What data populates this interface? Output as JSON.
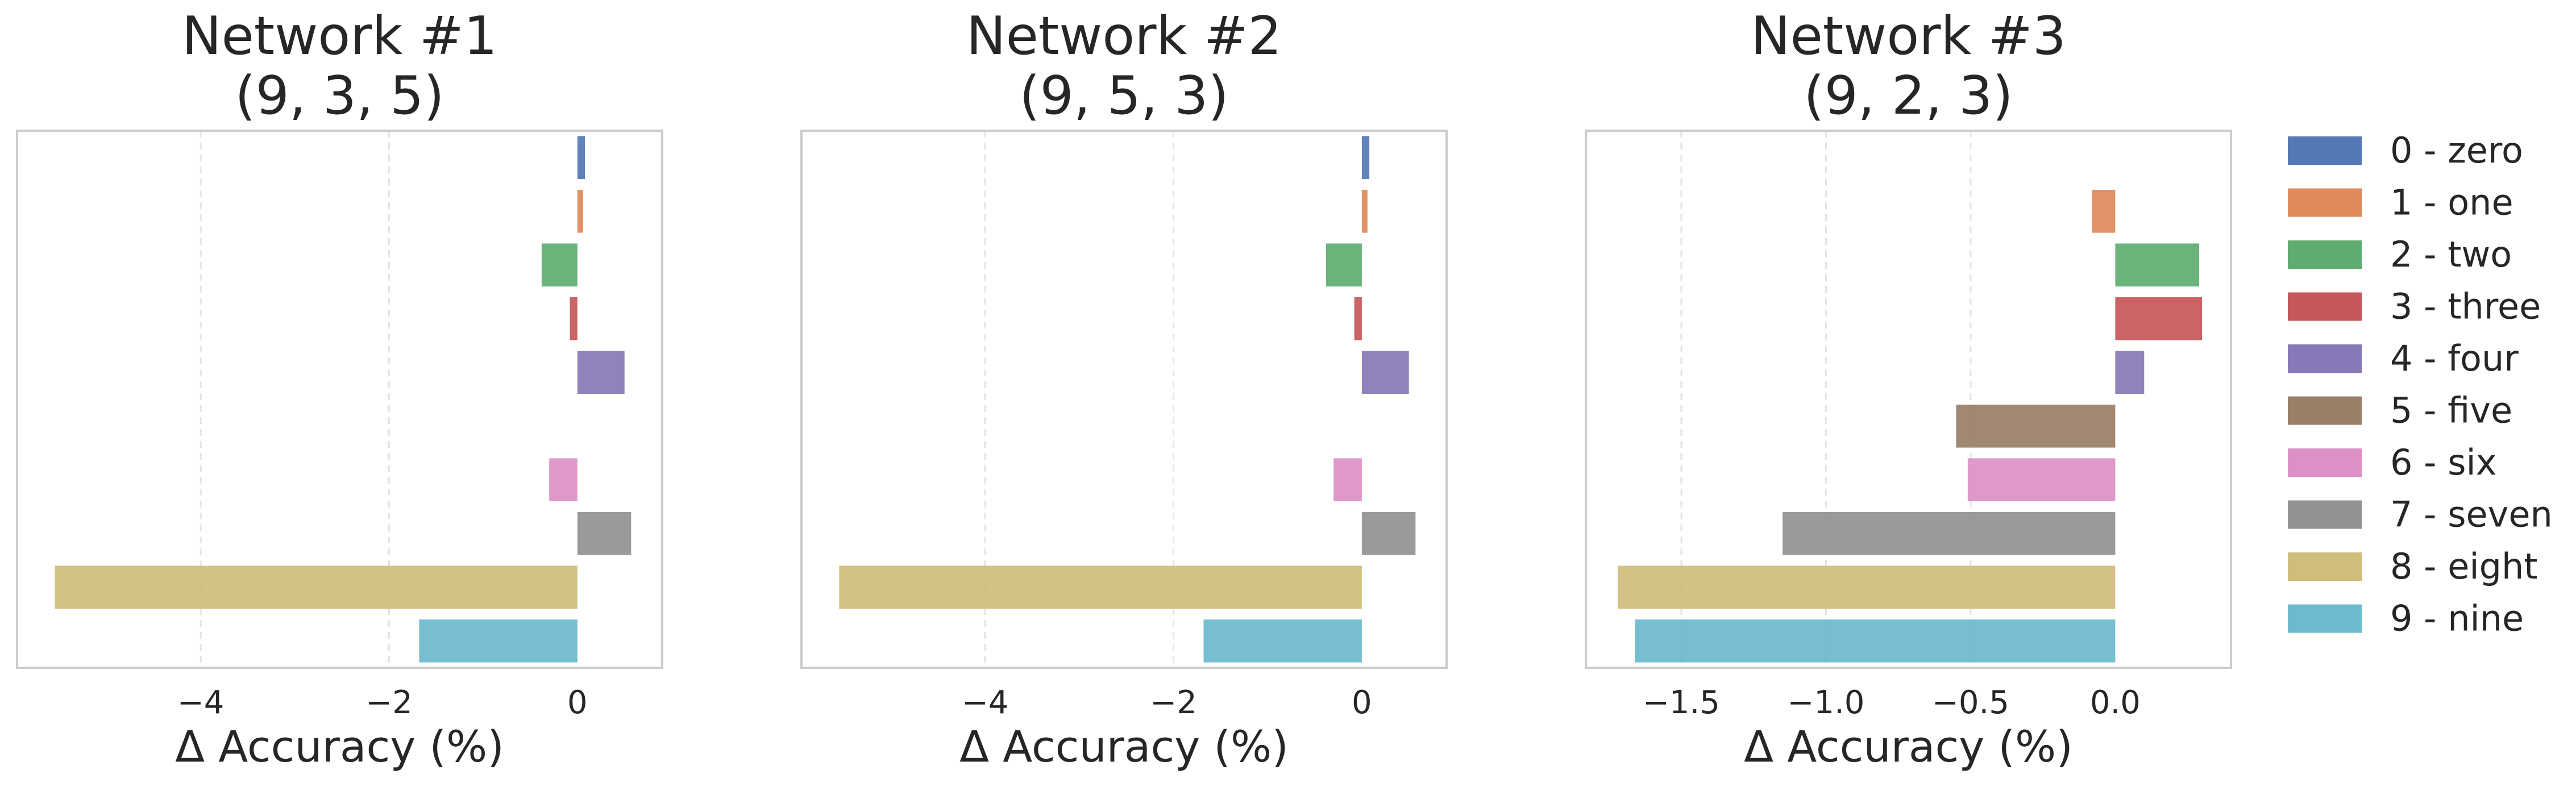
{
  "figure": {
    "legend_position": "right"
  },
  "legend": [
    {
      "label": "0 - zero",
      "color": "#4c72b0"
    },
    {
      "label": "1 - one",
      "color": "#dd8452"
    },
    {
      "label": "2 - two",
      "color": "#55a868"
    },
    {
      "label": "3 - three",
      "color": "#c44e52"
    },
    {
      "label": "4 - four",
      "color": "#8172b3"
    },
    {
      "label": "5 - five",
      "color": "#937860"
    },
    {
      "label": "6 - six",
      "color": "#da8bc3"
    },
    {
      "label": "7 - seven",
      "color": "#8c8c8c"
    },
    {
      "label": "8 - eight",
      "color": "#ccb974"
    },
    {
      "label": "9 - nine",
      "color": "#64b5cd"
    }
  ],
  "chart_data": [
    {
      "type": "bar",
      "orientation": "horizontal",
      "title_lines": [
        "Network #1",
        "(9, 3, 5)"
      ],
      "xlabel": "Δ Accuracy (%)",
      "categories": [
        "0 - zero",
        "1 - one",
        "2 - two",
        "3 - three",
        "4 - four",
        "5 - five",
        "6 - six",
        "7 - seven",
        "8 - eight",
        "9 - nine"
      ],
      "values": [
        0.08,
        0.06,
        -0.38,
        -0.08,
        0.5,
        0.0,
        -0.3,
        0.57,
        -5.55,
        -1.68
      ],
      "xlim": [
        -5.95,
        0.9
      ],
      "xticks": [
        {
          "value": -4,
          "label": "−4"
        },
        {
          "value": -2,
          "label": "−2"
        },
        {
          "value": 0,
          "label": "0"
        }
      ],
      "grid": "vertical dashed"
    },
    {
      "type": "bar",
      "orientation": "horizontal",
      "title_lines": [
        "Network #2",
        "(9, 5, 3)"
      ],
      "xlabel": "Δ Accuracy (%)",
      "categories": [
        "0 - zero",
        "1 - one",
        "2 - two",
        "3 - three",
        "4 - four",
        "5 - five",
        "6 - six",
        "7 - seven",
        "8 - eight",
        "9 - nine"
      ],
      "values": [
        0.08,
        0.06,
        -0.38,
        -0.08,
        0.5,
        0.0,
        -0.3,
        0.57,
        -5.55,
        -1.68
      ],
      "xlim": [
        -5.95,
        0.9
      ],
      "xticks": [
        {
          "value": -4,
          "label": "−4"
        },
        {
          "value": -2,
          "label": "−2"
        },
        {
          "value": 0,
          "label": "0"
        }
      ],
      "grid": "vertical dashed"
    },
    {
      "type": "bar",
      "orientation": "horizontal",
      "title_lines": [
        "Network #3",
        "(9, 2, 3)"
      ],
      "xlabel": "Δ Accuracy (%)",
      "categories": [
        "0 - zero",
        "1 - one",
        "2 - two",
        "3 - three",
        "4 - four",
        "5 - five",
        "6 - six",
        "7 - seven",
        "8 - eight",
        "9 - nine"
      ],
      "values": [
        0.0,
        -0.08,
        0.29,
        0.3,
        0.1,
        -0.55,
        -0.51,
        -1.15,
        -1.72,
        -1.66
      ],
      "xlim": [
        -1.83,
        0.4
      ],
      "xticks": [
        {
          "value": -1.5,
          "label": "−1.5"
        },
        {
          "value": -1.0,
          "label": "−1.0"
        },
        {
          "value": -0.5,
          "label": "−0.5"
        },
        {
          "value": 0.0,
          "label": "0.0"
        }
      ],
      "grid": "vertical dashed"
    }
  ]
}
